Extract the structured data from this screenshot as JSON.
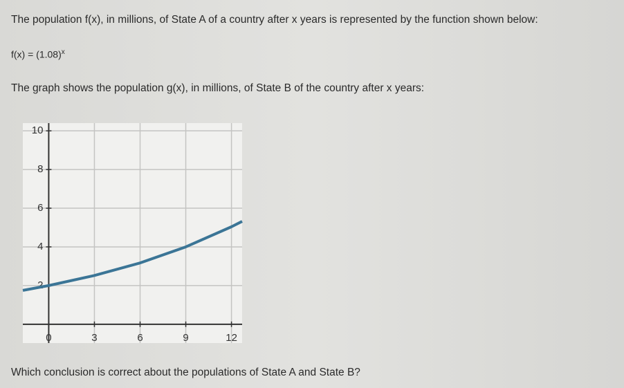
{
  "intro": "The population f(x), in millions, of State A of a country after x years is represented by the function shown below:",
  "formula": {
    "base": "f(x) = (1.08)",
    "exponent": "x"
  },
  "graph_intro": "The graph shows the population g(x), in millions, of State B of the country after x years:",
  "question": "Which conclusion is correct about the populations of State A and State B?",
  "chart_data": {
    "type": "line",
    "x": [
      -1.7,
      0,
      3,
      6,
      9,
      12,
      12.7
    ],
    "series": [
      {
        "color": "#3b7596",
        "values": [
          1.75,
          2,
          2.52,
          3.17,
          4,
          5.04,
          5.32
        ]
      }
    ],
    "xlim": [
      -1.7,
      12.7
    ],
    "ylim": [
      -0.4,
      10.4
    ],
    "xticks": [
      0,
      3,
      6,
      9,
      12
    ],
    "yticks": [
      2,
      4,
      6,
      8,
      10
    ],
    "grid": true
  }
}
